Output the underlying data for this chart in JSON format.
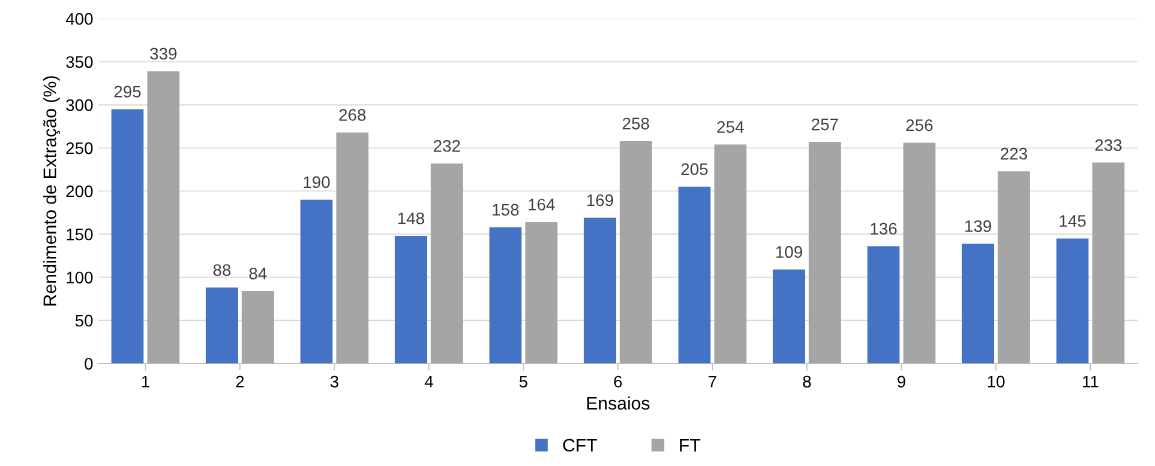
{
  "chart_data": {
    "type": "bar",
    "xlabel": "Ensaios",
    "ylabel": "Rendimento de Extração (%)",
    "categories": [
      "1",
      "2",
      "3",
      "4",
      "5",
      "6",
      "7",
      "8",
      "9",
      "10",
      "11"
    ],
    "series": [
      {
        "name": "CFT",
        "color": "#4472c4",
        "values": [
          295,
          88,
          190,
          148,
          158,
          169,
          205,
          109,
          136,
          139,
          145
        ]
      },
      {
        "name": "FT",
        "color": "#a5a5a5",
        "values": [
          339,
          84,
          268,
          232,
          164,
          258,
          254,
          257,
          256,
          223,
          233
        ]
      }
    ],
    "ylim": [
      0,
      400
    ],
    "yticks": [
      0,
      50,
      100,
      150,
      200,
      250,
      300,
      350,
      400
    ],
    "grid": "y",
    "legend": "bottom",
    "data_labels": true
  }
}
